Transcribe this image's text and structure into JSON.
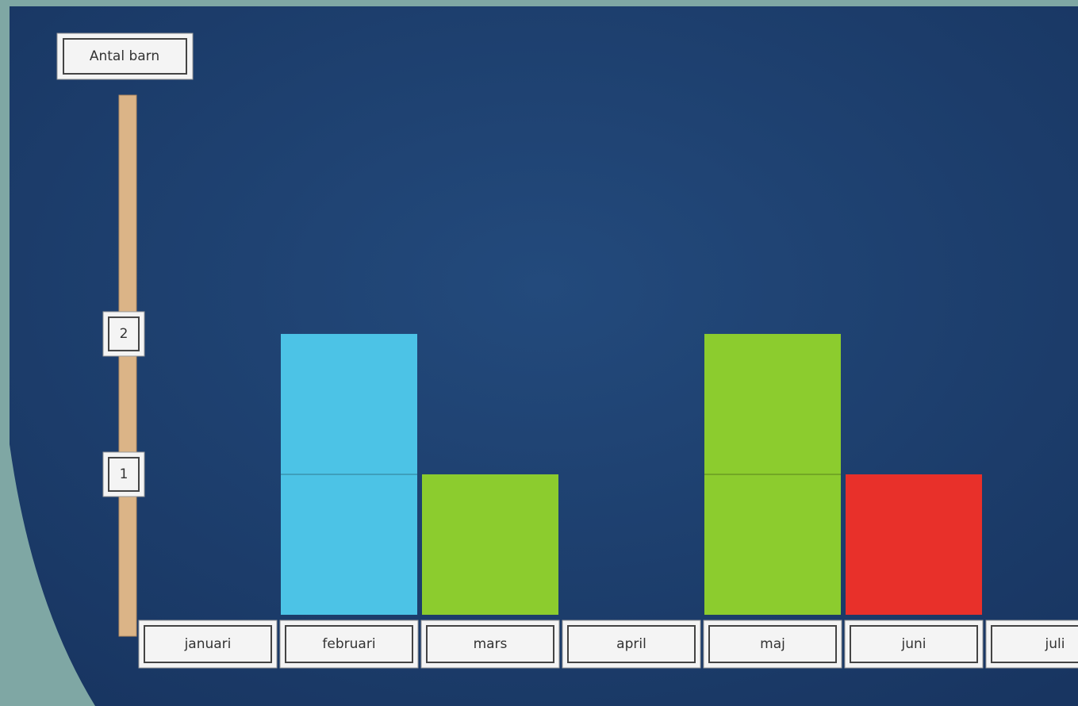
{
  "chart_data": {
    "type": "bar",
    "y_label": "Antal barn",
    "categories": [
      "januari",
      "februari",
      "mars",
      "april",
      "maj",
      "juni",
      "juli"
    ],
    "values": [
      0,
      2,
      1,
      0,
      2,
      1,
      0
    ],
    "colors": [
      null,
      "#4cc3e6",
      "#8ccc2e",
      null,
      "#8ccc2e",
      "#e8302a",
      null
    ],
    "ylim": [
      0,
      3.7
    ],
    "yticks": [
      1,
      2
    ]
  }
}
